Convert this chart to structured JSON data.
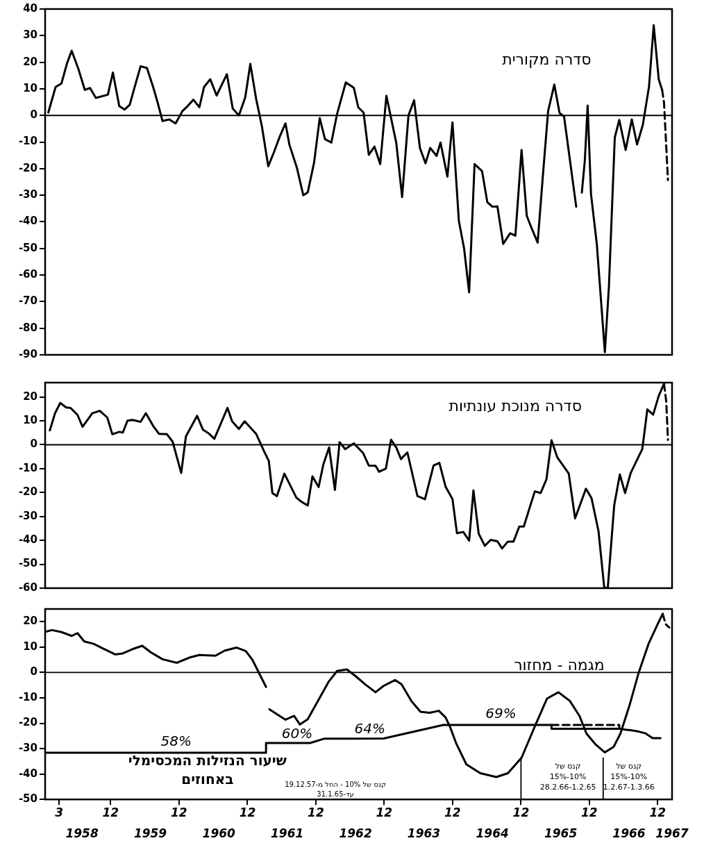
{
  "chart_data": [
    {
      "type": "line",
      "title": "סדרה מקורית",
      "xlim": [
        "1957-12-16",
        "1967-02-16"
      ],
      "ylim": [
        -90,
        40
      ],
      "yticks": [
        -90,
        -80,
        -70,
        -60,
        -50,
        -40,
        -30,
        -20,
        -10,
        0,
        10,
        20,
        30,
        40
      ],
      "tick_labels": "y",
      "ref_lines": [
        {
          "axis": "y",
          "value": 0
        }
      ],
      "series": [
        {
          "color": "#000000",
          "x": [
            "1958-01-02",
            "1958-02-10",
            "1958-03-13",
            "1958-04-13",
            "1958-05-07",
            "1958-06-13",
            "1958-07-16",
            "1958-08-13",
            "1958-09-13",
            "1958-11-16",
            "1958-12-13",
            "1959-01-16",
            "1959-02-13",
            "1959-03-13",
            "1959-04-10",
            "1959-05-10",
            "1959-06-13",
            "1959-07-16",
            "1959-08-10",
            "1959-09-04",
            "1959-10-10",
            "1959-11-13",
            "1959-12-19",
            "1960-01-16",
            "1960-02-16",
            "1960-03-19",
            "1960-04-13",
            "1960-05-16",
            "1960-06-19",
            "1960-08-13",
            "1960-09-13",
            "1960-10-16",
            "1960-11-19",
            "1960-12-16",
            "1961-01-16",
            "1961-02-16",
            "1961-03-22",
            "1961-04-22",
            "1961-05-22",
            "1961-06-22",
            "1961-07-13",
            "1961-08-22",
            "1961-09-25",
            "1961-10-19",
            "1961-11-22",
            "1961-12-22",
            "1962-01-19",
            "1962-02-22",
            "1962-03-25",
            "1962-05-10",
            "1962-06-22",
            "1962-07-16",
            "1962-08-13",
            "1962-09-10",
            "1962-10-10",
            "1962-11-10",
            "1962-12-13",
            "1963-02-04",
            "1963-03-07",
            "1963-04-10",
            "1963-05-10",
            "1963-06-10",
            "1963-07-10",
            "1963-08-04",
            "1963-09-07",
            "1963-09-28",
            "1963-11-04",
            "1963-12-01",
            "1964-01-04",
            "1964-02-01",
            "1964-02-28",
            "1964-03-28",
            "1964-05-07",
            "1964-06-04",
            "1964-07-01",
            "1964-07-28",
            "1964-08-28",
            "1964-10-04",
            "1964-11-01",
            "1964-12-04",
            "1965-01-01",
            "1965-01-28",
            "1965-02-28",
            "1965-03-28",
            "1965-04-25",
            "1965-05-28",
            "1965-06-25",
            "1965-07-19",
            "1965-09-22",
            "1965-10-07",
            "1965-10-22",
            "1965-11-07",
            "1965-11-22",
            "1965-12-10",
            "1966-01-10",
            "1966-02-22",
            "1966-03-16",
            "1966-04-16",
            "1966-05-10",
            "1966-06-13",
            "1966-07-16",
            "1966-08-13",
            "1966-09-13",
            "1966-10-16",
            "1966-11-10",
            "1966-12-07",
            "1966-12-25"
          ],
          "values": [
            1.1,
            10.7,
            12,
            19.8,
            24.3,
            17.2,
            9.6,
            10.3,
            6.6,
            7.8,
            16.1,
            3.5,
            2.2,
            4,
            11.1,
            18.5,
            17.8,
            10.7,
            4.6,
            -2.1,
            -1.5,
            -3,
            1.6,
            3.5,
            5.9,
            3.1,
            10.7,
            13.6,
            7.5,
            15.5,
            2.6,
            0,
            6.8,
            19.4,
            6.3,
            -4.1,
            -19.1,
            -13.7,
            -8,
            -3,
            -11,
            -19.7,
            -30,
            -28.9,
            -17.6,
            -1,
            -8.9,
            -10.2,
            0.7,
            12.4,
            10.4,
            3,
            1.1,
            -14.8,
            -11.7,
            -18.3,
            7.4,
            -10.4,
            -30.7,
            0,
            5.7,
            -12.2,
            -18,
            -12.2,
            -15.2,
            -10.2,
            -23,
            -2.6,
            -39.6,
            -50,
            -66.5,
            -18.3,
            -20.9,
            -32.6,
            -34.3,
            -34.2,
            -48.3,
            -44.3,
            -45.2,
            -13,
            -37.8,
            -42.6,
            -47.8,
            -22.6,
            1.7,
            11.6,
            0.9,
            -0.4,
            -34.3,
            null,
            -29,
            -17,
            3.7,
            -29.6,
            -48.3,
            -89,
            -63.9,
            -8.3,
            -1.7,
            -13,
            -1.5,
            -10.9,
            -3.5,
            10.9,
            33.9,
            13.5,
            9.6
          ]
        },
        {
          "color": "#000000",
          "line_style": "dashed",
          "x": [
            "1966-12-25",
            "1967-01-04",
            "1967-01-25"
          ],
          "values": [
            9.6,
            4.8,
            -24.3
          ]
        }
      ]
    },
    {
      "type": "line",
      "title": "סדרה מנוכת עונתיות",
      "xlim": [
        "1957-12-16",
        "1967-02-16"
      ],
      "ylim": [
        -60,
        26
      ],
      "yticks": [
        -60,
        -50,
        -40,
        -30,
        -20,
        -10,
        0,
        10,
        20
      ],
      "tick_labels": "y",
      "ref_lines": [
        {
          "axis": "y",
          "value": 0
        }
      ],
      "series": [
        {
          "color": "#000000",
          "x": [
            "1958-01-10",
            "1958-02-07",
            "1958-03-07",
            "1958-04-07",
            "1958-05-01",
            "1958-06-07",
            "1958-07-04",
            "1958-08-25",
            "1958-10-04",
            "1958-11-13",
            "1958-12-10",
            "1959-01-16",
            "1959-02-04",
            "1959-03-01",
            "1959-03-28",
            "1959-05-10",
            "1959-06-07",
            "1959-07-16",
            "1959-08-16",
            "1959-09-28",
            "1959-10-28",
            "1959-12-13",
            "1960-01-07",
            "1960-03-07",
            "1960-04-07",
            "1960-05-07",
            "1960-06-07",
            "1960-08-16",
            "1960-09-10",
            "1960-10-16",
            "1960-11-16",
            "1961-01-16",
            "1961-02-28",
            "1961-03-25",
            "1961-04-13",
            "1961-05-07",
            "1961-06-16",
            "1961-08-19",
            "1961-09-16",
            "1961-10-19",
            "1961-11-13",
            "1961-12-16",
            "1962-01-10",
            "1962-02-10",
            "1962-03-13",
            "1962-04-07",
            "1962-05-07",
            "1962-06-22",
            "1962-08-10",
            "1962-09-10",
            "1962-10-16",
            "1962-11-04",
            "1962-12-10",
            "1963-01-07",
            "1963-02-04",
            "1963-03-01",
            "1963-04-04",
            "1963-05-28",
            "1963-07-07",
            "1963-08-22",
            "1963-09-22",
            "1963-10-25",
            "1963-12-01",
            "1963-12-25",
            "1964-01-28",
            "1964-02-28",
            "1964-03-22",
            "1964-04-19",
            "1964-05-22",
            "1964-06-22",
            "1964-07-28",
            "1964-08-22",
            "1964-09-22",
            "1964-10-22",
            "1964-11-22",
            "1964-12-16",
            "1965-01-16",
            "1965-02-13",
            "1965-03-16",
            "1965-04-16",
            "1965-05-13",
            "1965-06-13",
            "1965-08-13",
            "1965-09-16",
            "1965-11-13",
            "1965-12-13",
            "1966-01-19",
            "1966-02-19",
            "1966-03-10",
            "1966-04-13",
            "1966-05-13",
            "1966-06-10",
            "1966-07-10",
            "1966-09-10",
            "1966-10-07",
            "1966-11-07",
            "1966-12-07",
            "1967-01-04"
          ],
          "values": [
            6,
            13.2,
            17.5,
            15.6,
            15.4,
            12.5,
            7.5,
            13.2,
            14.2,
            11.4,
            4.4,
            5.4,
            5.1,
            10.1,
            10.4,
            9.6,
            13.2,
            7.9,
            4.6,
            4.4,
            1.3,
            -11.8,
            3.5,
            12.1,
            6.3,
            4.8,
            2.5,
            15.4,
            9.8,
            6.6,
            9.8,
            4.6,
            -2.8,
            -6.8,
            -20.2,
            -21.5,
            -12.1,
            -22.1,
            -23.9,
            -25.4,
            -13.2,
            -17.7,
            -8.3,
            -1.1,
            -18.9,
            1.1,
            -1.8,
            0.6,
            -3.4,
            -8.7,
            -8.8,
            -11.3,
            -10,
            2.1,
            -1.2,
            -6,
            -3.2,
            -21.5,
            -22.8,
            -8.7,
            -7.6,
            -17.5,
            -22.7,
            -37,
            -36.5,
            -40.1,
            -19.1,
            -37.2,
            -42.3,
            -39.8,
            -40.4,
            -43.4,
            -40.5,
            -40.5,
            -34.2,
            -34.2,
            -26.4,
            -19.5,
            -20.2,
            -14.4,
            1.9,
            -5.3,
            -12,
            -30.8,
            -18.4,
            -22.4,
            -36.1,
            -60,
            -59.5,
            -25.3,
            -12.4,
            -20.2,
            -11.8,
            -1.8,
            14.8,
            12.6,
            20.5,
            25.5
          ]
        },
        {
          "color": "#000000",
          "line_style": "dashed",
          "x": [
            "1967-01-04",
            "1967-01-16",
            "1967-01-25"
          ],
          "values": [
            25.5,
            18,
            2
          ]
        }
      ]
    },
    {
      "type": "line",
      "title": "מגמה - מחזור",
      "xlim": [
        "1957-12-16",
        "1967-02-16"
      ],
      "ylim": [
        -50,
        25
      ],
      "yticks": [
        -50,
        -40,
        -30,
        -20,
        -10,
        0,
        10,
        20
      ],
      "xticks": [
        {
          "value": "1958-03",
          "label": "3"
        },
        {
          "value": "1958-12",
          "label": "12"
        },
        {
          "value": "1959-12",
          "label": "12"
        },
        {
          "value": "1960-12",
          "label": "12"
        },
        {
          "value": "1961-12",
          "label": "12"
        },
        {
          "value": "1962-12",
          "label": "12"
        },
        {
          "value": "1963-12",
          "label": "12"
        },
        {
          "value": "1964-12",
          "label": "12"
        },
        {
          "value": "1965-12",
          "label": "12"
        },
        {
          "value": "1966-12",
          "label": "12"
        }
      ],
      "x2lim": [
        "1957-12-16",
        "1967-02-16"
      ],
      "x2ticks": [
        {
          "value": "1958-07",
          "label": "1958"
        },
        {
          "value": "1959-07",
          "label": "1959"
        },
        {
          "value": "1960-07",
          "label": "1960"
        },
        {
          "value": "1961-07",
          "label": "1961"
        },
        {
          "value": "1962-07",
          "label": "1962"
        },
        {
          "value": "1963-07",
          "label": "1963"
        },
        {
          "value": "1964-07",
          "label": "1964"
        },
        {
          "value": "1965-07",
          "label": "1965"
        },
        {
          "value": "1966-07",
          "label": "1966"
        },
        {
          "value": "1967-02-16",
          "label": "1967"
        }
      ],
      "ref_lines": [
        {
          "axis": "y",
          "value": 0
        },
        {
          "axis": "x",
          "value": "1964-12-01"
        },
        {
          "axis": "x",
          "value": "1966-02-13"
        }
      ],
      "annotations": [
        "58%",
        "60%",
        "64%",
        "69%",
        "שיעור הנזילות המכסימלי\nבאחוזים",
        "קנס של 10% - החל מ-19.12.57\nעד-31.1.65",
        "קנס של\n15%-10%\n28.2.66-1.2.65",
        "קנס של\n15%-10%\n1.2.67-1.3.66"
      ],
      "series": [
        {
          "color": "#000000",
          "x": [
            "1957-12-22",
            "1958-01-22",
            "1958-03-13",
            "1958-05-07",
            "1958-06-07",
            "1958-07-13",
            "1958-09-01",
            "1958-10-19",
            "1958-12-25",
            "1959-02-04",
            "1959-03-28",
            "1959-05-19",
            "1959-07-04",
            "1959-09-04",
            "1959-11-19",
            "1960-02-01",
            "1960-03-19",
            "1960-06-13",
            "1960-08-01",
            "1960-10-04",
            "1960-11-22",
            "1960-12-28",
            "1961-02-04",
            "1961-03-10",
            "1961-03-19",
            "1961-03-28",
            "1961-05-10",
            "1961-06-22",
            "1961-08-07",
            "1961-09-07",
            "1961-10-19",
            "1961-12-07",
            "1962-02-07",
            "1962-03-25",
            "1962-05-16",
            "1962-07-04",
            "1962-08-22",
            "1962-10-16",
            "1962-11-28",
            "1963-01-28",
            "1963-03-04",
            "1963-04-25",
            "1963-06-13",
            "1963-08-01",
            "1963-09-19",
            "1963-10-25",
            "1963-11-19",
            "1963-12-19",
            "1964-02-13",
            "1964-04-28",
            "1964-07-22",
            "1964-09-22",
            "1964-12-04",
            "1965-02-16",
            "1965-04-19",
            "1965-06-19",
            "1965-08-19",
            "1965-10-10",
            "1965-11-16",
            "1966-01-04",
            "1966-02-22",
            "1966-04-10",
            "1966-05-16",
            "1966-07-04",
            "1966-08-22",
            "1966-10-13",
            "1966-12-01",
            "1966-12-28"
          ],
          "values": [
            16.1,
            16.7,
            15.9,
            14.4,
            15.5,
            12.2,
            11.3,
            9.5,
            7.1,
            7.5,
            9.2,
            10.5,
            7.9,
            5.2,
            3.8,
            6,
            6.9,
            6.6,
            8.6,
            9.8,
            8.4,
            4.9,
            -0.7,
            -5.7,
            null,
            -14.5,
            -16.6,
            -18.6,
            -17.1,
            -20.5,
            -18.4,
            -11.9,
            -3.7,
            0.6,
            1.2,
            -1.6,
            -4.7,
            -7.8,
            -5.3,
            -3,
            -4.7,
            -11.2,
            -15.5,
            -15.9,
            -15.1,
            -17.7,
            -21.6,
            -27.6,
            -36.2,
            -39.7,
            -41.2,
            -39.7,
            -33.6,
            -20.7,
            -10.3,
            -7.8,
            -11.2,
            -17.2,
            -24.1,
            -28.4,
            -31.5,
            -29.3,
            -24.1,
            -12.9,
            0,
            11.2,
            19,
            23.1
          ]
        },
        {
          "color": "#000000",
          "line_style": "dashed",
          "x": [
            "1966-12-28",
            "1967-01-13",
            "1967-02-01"
          ],
          "values": [
            23.1,
            19,
            17.7
          ]
        },
        {
          "color": "#000000",
          "x": [
            "1957-12-22",
            "1961-03-10",
            "1961-03-10",
            "1961-11-01",
            "1962-01-13",
            "1962-11-28",
            "1963-10-13",
            "1965-05-13",
            "1965-05-13",
            "1966-05-16",
            "1966-06-10",
            "1966-07-16",
            "1966-08-22",
            "1966-09-28",
            "1966-11-04",
            "1966-12-16"
          ],
          "values": [
            -31.6,
            -31.6,
            -27.8,
            -27.8,
            -26.1,
            -26,
            -20.7,
            -20.7,
            -22.2,
            -22.2,
            -22.5,
            -22.8,
            -23.3,
            -24,
            -25.9,
            -25.9
          ]
        },
        {
          "color": "#000000",
          "line_style": "dashed",
          "x": [
            "1965-05-13",
            "1966-05-10",
            "1966-05-10"
          ],
          "values": [
            -20.7,
            -20.7,
            -22.2
          ]
        }
      ]
    }
  ]
}
